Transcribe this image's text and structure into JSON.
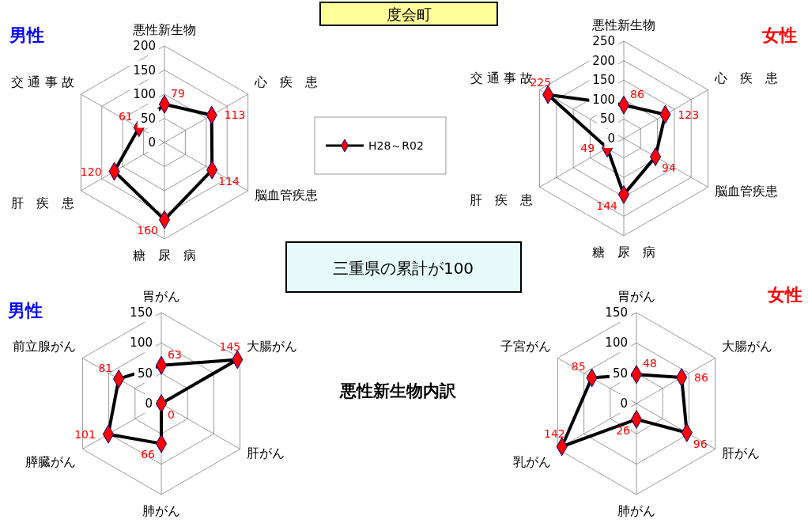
{
  "chart_data": [
    {
      "type": "other",
      "title": "度会町",
      "annotations": [
        "三重県の累計が100",
        "悪性新生物内訳"
      ]
    },
    {
      "type": "radar",
      "title": "男性",
      "categories": [
        "悪性新生物",
        "心　疾　患",
        "脳血管疾患",
        "糖　尿　病",
        "肝　疾　患",
        "交 通 事 故"
      ],
      "ylim": [
        0,
        200
      ],
      "yticks": [
        0,
        50,
        100,
        150,
        200
      ],
      "grid": true,
      "legend": "right",
      "marker": "diamond",
      "data_labels": true,
      "series": [
        {
          "name": "H28～R02",
          "color": "#000000",
          "values": [
            79,
            113,
            114,
            160,
            120,
            61
          ]
        }
      ]
    },
    {
      "type": "radar",
      "title": "女性",
      "categories": [
        "悪性新生物",
        "心　疾　患",
        "脳血管疾患",
        "糖　尿　病",
        "肝　疾　患",
        "交 通 事 故"
      ],
      "ylim": [
        0,
        250
      ],
      "yticks": [
        0,
        50,
        100,
        150,
        200,
        250
      ],
      "grid": true,
      "marker": "diamond",
      "data_labels": true,
      "series": [
        {
          "color": "#000000",
          "values": [
            86,
            123,
            94,
            144,
            49,
            225
          ]
        }
      ]
    },
    {
      "type": "radar",
      "title": "男性",
      "categories": [
        "胃がん",
        "大腸がん",
        "肝がん",
        "肺がん",
        "膵臓がん",
        "前立腺がん"
      ],
      "ylim": [
        0,
        150
      ],
      "yticks": [
        0,
        50,
        100,
        150
      ],
      "grid": true,
      "marker": "diamond",
      "data_labels": true,
      "series": [
        {
          "color": "#000000",
          "values": [
            63,
            145,
            0,
            66,
            101,
            81
          ]
        }
      ]
    },
    {
      "type": "radar",
      "title": "女性",
      "categories": [
        "胃がん",
        "大腸がん",
        "肝がん",
        "肺がん",
        "乳がん",
        "子宮がん"
      ],
      "ylim": [
        0,
        150
      ],
      "yticks": [
        0,
        50,
        100,
        150
      ],
      "grid": true,
      "marker": "diamond",
      "data_labels": true,
      "series": [
        {
          "color": "#000000",
          "values": [
            48,
            86,
            96,
            26,
            142,
            85
          ]
        }
      ]
    }
  ]
}
